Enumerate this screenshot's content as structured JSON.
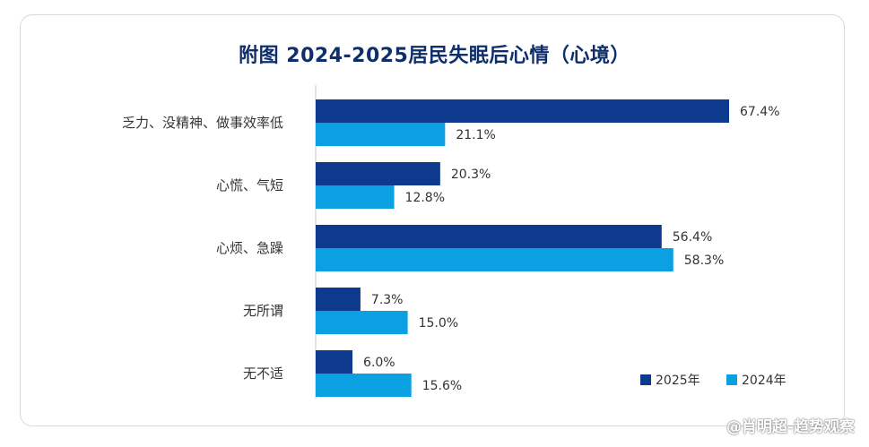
{
  "chart_data": {
    "type": "bar",
    "orientation": "horizontal",
    "title": "附图 2024-2025居民失眠后心情（心境）",
    "categories": [
      "乏力、没精神、做事效率低",
      "心慌、气短",
      "心烦、急躁",
      "无所谓",
      "无不适"
    ],
    "series": [
      {
        "name": "2025年",
        "color": "#0d3a8c",
        "values": [
          67.4,
          20.3,
          56.4,
          7.3,
          6.0
        ],
        "labels": [
          "67.4%",
          "20.3%",
          "56.4%",
          "7.3%",
          "6.0%"
        ]
      },
      {
        "name": "2024年",
        "color": "#0aa0e2",
        "values": [
          21.1,
          12.8,
          58.3,
          15.0,
          15.6
        ],
        "labels": [
          "21.1%",
          "12.8%",
          "58.3%",
          "15.0%",
          "15.6%"
        ]
      }
    ],
    "xlim": [
      0,
      70
    ],
    "legend_position": "bottom-right",
    "grid": false
  },
  "watermark": "@肖明超-趋势观察"
}
